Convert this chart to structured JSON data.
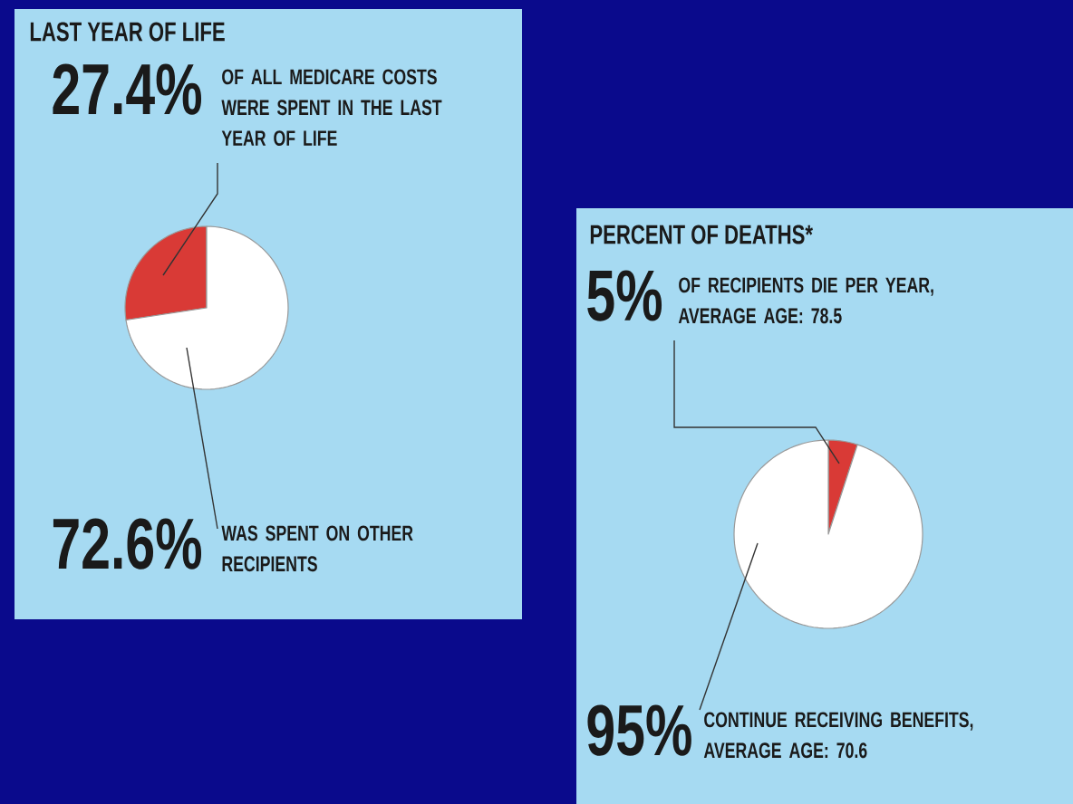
{
  "chart_data": [
    {
      "type": "pie",
      "title": "LAST YEAR OF LIFE",
      "categories": [
        "OF ALL MEDICARE COSTS WERE SPENT IN THE LAST YEAR OF LIFE",
        "WAS SPENT ON OTHER RECIPIENTS"
      ],
      "values": [
        27.4,
        72.6
      ],
      "value_labels": [
        "27.4%",
        "72.6%"
      ],
      "colors": [
        "#d93a36",
        "#ffffff"
      ]
    },
    {
      "type": "pie",
      "title": "PERCENT OF DEATHS*",
      "categories": [
        "OF RECIPIENTS DIE PER YEAR, AVERAGE AGE: 78.5",
        "CONTINUE RECEIVING BENEFITS, AVERAGE AGE: 70.6"
      ],
      "values": [
        5,
        95
      ],
      "value_labels": [
        "5%",
        "95%"
      ],
      "colors": [
        "#d93a36",
        "#ffffff"
      ]
    }
  ]
}
